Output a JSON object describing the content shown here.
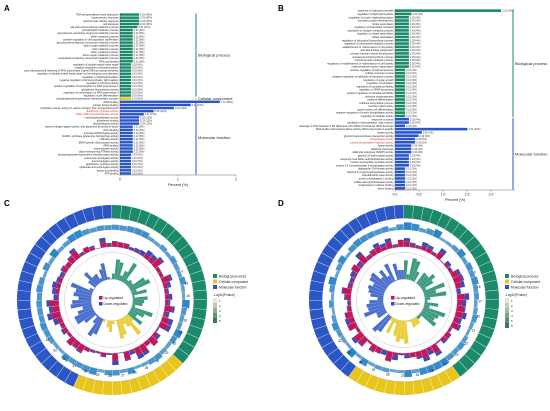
{
  "colors": {
    "green": "#1b8a6b",
    "blue": "#2a56c6",
    "yellow": "#e8c51a",
    "up": "#c2185b",
    "down": "#3f4bb5",
    "ring_light": "#1f7ec4",
    "red_text": "#d43a2f"
  },
  "chart_data": [
    {
      "panel": "A",
      "type": "bar",
      "orientation": "horizontal",
      "xlabel": "Percent (%)",
      "xlim": [
        0,
        2
      ],
      "x_ticks": [
        "0",
        "1",
        "2"
      ],
      "groups": [
        {
          "name": "Biological process",
          "color": "green",
          "count": 27
        },
        {
          "name": "Cellular component",
          "color": "yellow",
          "count": 1
        },
        {
          "name": "Molecular function",
          "color": "blue",
          "count": 24
        }
      ],
      "categories": [
        "RNA phosphodiester bond hydrolysis",
        "hyperosmotic response",
        "hyperosmotic salinity response",
        "salt tolerance",
        "cell wall macromolecule catabolic process",
        "phospholipid metabolic process",
        "glucosamine-containing compound catabolic process",
        "chitin metabolic process",
        "positive regulation of cell population proliferation",
        "glucosamine-containing compound metabolic process",
        "amino sugar catabolic process",
        "chitin catabolic process",
        "chitin metabolic process",
        "amino sugar metabolic process",
        "nucleobase-containing compound metabolic process",
        "RNA cap binding",
        "regulation of double-strand break repair",
        "negative regulation of phosphorylation",
        "post-transcriptional tethering of RNA polymerase II gene DNA at nuclear periphery",
        "regulation of double-strand break repair via homologous recombination",
        "regulation of dephosphorylation",
        "negative regulation of photosynthesis, light reaction",
        "regulation of photosynthesis",
        "positive regulation of transcription by RNA polymerase II",
        "glutathione biosynthetic process",
        "regulation of transcription by RNA polymerase II",
        "regulation of cell differentiation",
        "phosphopantothenoylcysteine decarboxylase complex",
        "tRNA binding",
        "protein kinase binding",
        "hydrolase activity, acting on carbon-nitrogen (but not peptide) bonds",
        "glutathione synthase activity",
        "NAD+ ADP-ribosyltransferase activity",
        "nucleotidyltransferase activity",
        "glutathione binding",
        "phospholipase activity",
        "carbon-nitrogen ligase activity, with glutamine as amido-N-donor",
        "chitin binding",
        "aminoacyl-tRNA ligase activity",
        "NADP+ synthase (glutamine-hydrolyzing) activity",
        "chitinase activity",
        "tRNA-specific ribonuclease activity",
        "rRNA binding",
        "endonuclease activity",
        "cation-transporting ATPase activity",
        "phosphopantothenoylcysteine decarboxylase activity",
        "acid-amino acid ligase activity",
        "ammonia ligase activity",
        "glutathione synthase activity",
        "glutamate-ammonia ligase activity",
        "amino acid binding",
        "ATP binding"
      ],
      "values": [
        0.33,
        0.33,
        0.33,
        0.33,
        0.3,
        0.22,
        0.22,
        0.22,
        0.22,
        0.22,
        0.22,
        0.22,
        0.22,
        0.22,
        0.22,
        0.22,
        0.19,
        0.19,
        0.19,
        0.19,
        0.19,
        0.19,
        0.19,
        0.19,
        0.19,
        0.19,
        0.19,
        0.19,
        1.72,
        1.22,
        0.93,
        0.58,
        0.41,
        0.33,
        0.33,
        0.33,
        0.22,
        0.22,
        0.22,
        0.22,
        0.22,
        0.22,
        0.22,
        0.22,
        0.22,
        0.19,
        0.19,
        0.19,
        0.19,
        0.19,
        0.19,
        0.19
      ],
      "value_labels": [
        "0.33 (40%)",
        "0.33 (40%)",
        "0.33 (40%)",
        "0.33 (40%)",
        "0.30 (37%)",
        "0.22 (8%)",
        "0.22 (8%)",
        "0.22 (8%)",
        "0.22 (8%)",
        "0.22 (8%)",
        "0.22 (8%)",
        "0.22 (8%)",
        "0.22 (8%)",
        "0.22 (8%)",
        "0.22 (8%)",
        "0.22 (8%)",
        "0.19 (6%)",
        "0.19 (6%)",
        "0.19 (6%)",
        "0.19 (6%)",
        "0.19 (6%)",
        "0.19 (6%)",
        "0.19 (6%)",
        "0.19 (6%)",
        "0.19 (6%)",
        "0.19 (6%)",
        "0.19 (6%)",
        "0.19 (6%)",
        "1.72 (88%)",
        "1.22 (54%)",
        "0.93 (44%)",
        "0.58 (20%)",
        "0.41 (14%)",
        "0.33 (12%)",
        "0.33 (12%)",
        "0.33 (12%)",
        "0.22 (8%)",
        "0.22 (8%)",
        "0.22 (8%)",
        "0.22 (8%)",
        "0.22 (8%)",
        "0.22 (8%)",
        "0.22 (8%)",
        "0.22 (8%)",
        "0.22 (8%)",
        "0.19 (6%)",
        "0.19 (6%)",
        "0.19 (6%)",
        "0.19 (6%)",
        "0.19 (6%)",
        "0.19 (6%)",
        "0.19 (6%)"
      ],
      "highlighted_labels": [
        31,
        32
      ]
    },
    {
      "panel": "B",
      "type": "bar",
      "orientation": "horizontal",
      "xlabel": "Percent (%)",
      "xlim": [
        0,
        2.5
      ],
      "x_ticks": [
        "0.0",
        "0.5",
        "1.0",
        "1.5",
        "2.0"
      ],
      "groups": [
        {
          "name": "Biological process",
          "color": "green",
          "count": 33
        },
        {
          "name": "Molecular function",
          "color": "blue",
          "count": 22
        }
      ],
      "categories": [
        "response to hydrogen peroxide",
        "regulation of dephosphorylation",
        "regulation of protein dephosphorylation",
        "stomatal complex development",
        "nitrate assimilation",
        "regulation of intracellular transport",
        "regulation of nitrogen metabolic process",
        "regulation of nitrate assimilation",
        "sulfate assimilation",
        "regulation of chlorophyll biosynthetic process",
        "regulation of chlorophyll metabolic process",
        "establishment or maintenance of cell polarity",
        "stomatal lineage progression",
        "primary meristem tissue development",
        "monoterpenoid biosynthetic process",
        "monoterpenoid metabolic process",
        "regulation of establishment or maintenance of cell polarity",
        "endomembrane system organization",
        "positive regulation of leaf senescence",
        "cellular response to heat",
        "negative regulation of epithelial cell apoptotic process",
        "regulation of organ growth",
        "regulation of translation",
        "regulation of translational fidelity",
        "regulation of tRNA processing",
        "positive regulation of translational fidelity",
        "trichome morphogenesis",
        "trichome differentiation",
        "cellulose biosynthetic process",
        "meristem determinacy",
        "guard mother cell differentiation",
        "negative regulation of protein phosphatase activity",
        "regulation of catalytic activity",
        "response to anoxia",
        "regulation of phosphatase, dark reaction",
        "cleavage in ITS2 between 5.8S rRNA and LSU-rRNA of tricistronic rRNA transcript",
        "DNA-binding transcription factor activity, RNA polymerase II-specific",
        "kinase activity",
        "glycerol transmembrane transporter activity",
        "phosphatase activity",
        "protein phosphatase regulator activity",
        "lipase activity",
        "aldehyde reductase",
        "aldehyde reductase (NADP) activity",
        "general 20-hydroxylase activity",
        "neopentyl-CoA delta-methyltransferase activity",
        "inositol 3-phosphate synthase activity",
        "inositol-1,4,5-trisphosphate 5-phosphatase activity",
        "dephospho-CoA kinase activity",
        "flavonol 3'-O-glucosyltransferase activity",
        "mandelonitrile lyase activity",
        "protein phosphatase 1 binding",
        "sulfate adenylyltransferase activity",
        "molybdopterin cofactor binding",
        "heme binding"
      ],
      "values": [
        2.21,
        0.34,
        0.29,
        0.29,
        0.29,
        0.29,
        0.29,
        0.29,
        0.29,
        0.29,
        0.29,
        0.29,
        0.29,
        0.29,
        0.29,
        0.29,
        0.29,
        0.29,
        0.21,
        0.21,
        0.21,
        0.21,
        0.21,
        0.21,
        0.21,
        0.21,
        0.21,
        0.21,
        0.21,
        0.21,
        0.21,
        0.21,
        0.21,
        0.29,
        0.29,
        0.21,
        1.51,
        0.56,
        0.49,
        0.42,
        0.42,
        0.34,
        0.34,
        0.34,
        0.29,
        0.29,
        0.29,
        0.29,
        0.21,
        0.21,
        0.21,
        0.21,
        0.21,
        0.21,
        0.21
      ],
      "value_labels": [
        "2.21 (29%)",
        "0.34 (4%)",
        "0.29 (4%)",
        "0.29 (4%)",
        "0.29 (4%)",
        "0.29 (4%)",
        "0.29 (4%)",
        "0.29 (4%)",
        "0.29 (4%)",
        "0.29 (4%)",
        "0.29 (4%)",
        "0.29 (4%)",
        "0.29 (4%)",
        "0.29 (4%)",
        "0.29 (4%)",
        "0.29 (4%)",
        "0.29 (4%)",
        "0.29 (4%)",
        "0.21 (3%)",
        "0.21 (3%)",
        "0.21 (3%)",
        "0.21 (3%)",
        "0.21 (3%)",
        "0.21 (3%)",
        "0.21 (3%)",
        "0.21 (3%)",
        "0.21 (3%)",
        "0.21 (3%)",
        "0.21 (3%)",
        "0.21 (3%)",
        "0.21 (3%)",
        "0.21 (3%)",
        "0.21 (3%)",
        "0.29 (4%)",
        "0.29 (4%)",
        "0.21 (3%)",
        "1.51 (20%)",
        "0.56 (7%)",
        "0.49 (6%)",
        "0.42 (5%)",
        "0.42 (5%)",
        "0.34 (4%)",
        "0.34 (4%)",
        "0.34 (4%)",
        "0.29 (4%)",
        "0.29 (4%)",
        "0.29 (4%)",
        "0.29 (4%)",
        "0.21 (3%)",
        "0.21 (3%)",
        "0.21 (3%)",
        "0.21 (3%)",
        "0.21 (3%)",
        "0.21 (3%)",
        "0.21 (3%)"
      ],
      "highlighted_labels": [
        39,
        40
      ]
    },
    {
      "panel": "C",
      "type": "circular",
      "sectors": 60,
      "sector_groups": [
        {
          "name": "Biological process",
          "color": "green",
          "start": 0,
          "count": 22
        },
        {
          "name": "Cellular component",
          "color": "yellow",
          "start": 22,
          "count": 12
        },
        {
          "name": "Molecular function",
          "color": "blue",
          "start": 34,
          "count": 26
        }
      ],
      "visible_numbers": [
        "0",
        "15",
        "16",
        "17",
        "18",
        "21",
        "22",
        "23",
        "24",
        "25",
        "26",
        "27",
        "28",
        "29",
        "30",
        "31",
        "32",
        "33",
        "34"
      ],
      "legend": {
        "groups": [
          "Biological process",
          "Cellular component",
          "Molecular function"
        ],
        "updown": [
          "Up-regulated",
          "Down-regulated"
        ],
        "scale_title": "-Log10(Pvalue)",
        "scale_ticks": [
          "1",
          "2",
          "3",
          "4",
          "5"
        ]
      }
    },
    {
      "panel": "D",
      "type": "circular",
      "sectors": 60,
      "sector_groups": [
        {
          "name": "Biological process",
          "color": "green",
          "start": 0,
          "count": 24
        },
        {
          "name": "Cellular component",
          "color": "yellow",
          "start": 24,
          "count": 12
        },
        {
          "name": "Molecular function",
          "color": "blue",
          "start": 36,
          "count": 24
        }
      ],
      "visible_numbers": [
        "0",
        "16",
        "17",
        "20",
        "21",
        "22",
        "23",
        "24",
        "25",
        "26",
        "27",
        "28",
        "29",
        "30",
        "31",
        "32"
      ],
      "legend": {
        "groups": [
          "Biological process",
          "Cellular component",
          "Molecular function"
        ],
        "updown": [
          "Up-regulated",
          "Down-regulated"
        ],
        "scale_title": "-Log10(Pvalue)",
        "scale_ticks": [
          "1",
          "2",
          "3",
          "4",
          "5",
          "6"
        ]
      }
    }
  ],
  "panels": {
    "A": {
      "letter": "A"
    },
    "B": {
      "letter": "B"
    },
    "C": {
      "letter": "C"
    },
    "D": {
      "letter": "D"
    }
  }
}
